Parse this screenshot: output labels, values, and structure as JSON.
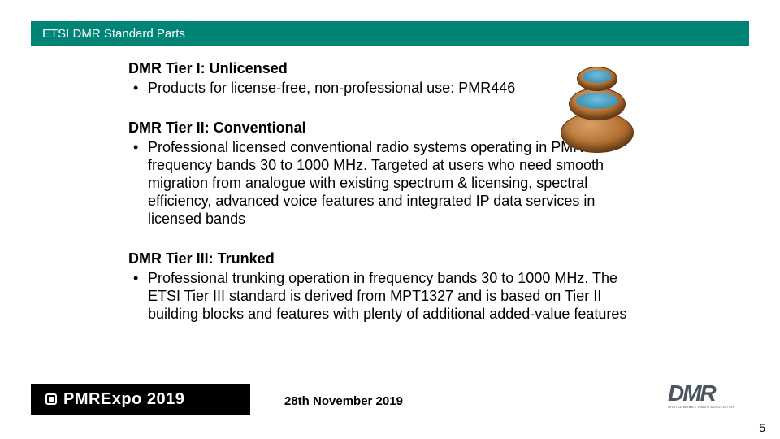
{
  "header": {
    "title": "ETSI DMR Standard Parts"
  },
  "tiers": [
    {
      "title": "DMR Tier I: Unlicensed",
      "bullet": "Products for license-free, non-professional use: PMR446"
    },
    {
      "title": "DMR Tier II: Conventional",
      "bullet": "Professional licensed conventional radio systems operating in PMR frequency bands 30 to 1000 MHz. Targeted at users who need smooth migration from analogue with existing spectrum & licensing, spectral efficiency, advanced voice features and integrated IP data services in licensed bands"
    },
    {
      "title": "DMR Tier III: Trunked",
      "bullet": "Professional trunking operation in frequency bands 30 to 1000 MHz. The ETSI Tier III standard is derived from MPT1327 and is based on Tier II building blocks and features with plenty of additional added-value features"
    }
  ],
  "footer": {
    "expo_label": "PMRExpo 2019",
    "date": "28th November 2019",
    "dmr_logo_text": "DMR",
    "dmr_sub": "DIGITAL MOBILE RADIO ASSOCIATION",
    "page": "5"
  },
  "colors": {
    "header_bg": "#008476",
    "header_text": "#ffffff",
    "body_text": "#000000",
    "expo_bg": "#000000",
    "dmr_logo": "#4a5560"
  }
}
